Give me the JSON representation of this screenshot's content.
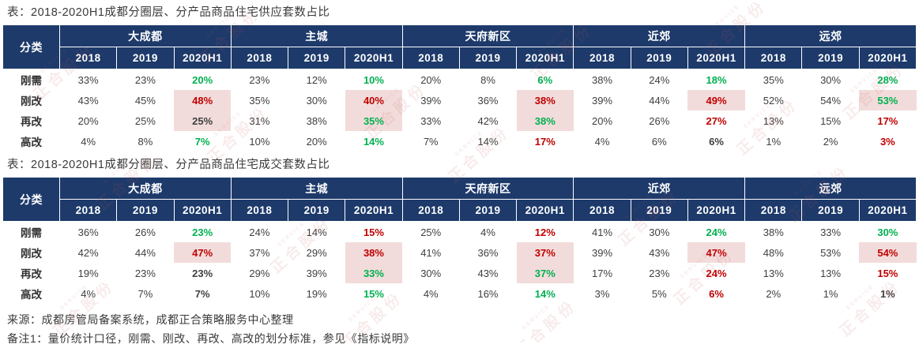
{
  "colors": {
    "header_bg": "#1d3a6a",
    "highlight_bg": "#f2dcdb",
    "positive_green": "#00b050",
    "negative_red": "#c00000",
    "text_dark": "#3f3f3f"
  },
  "table1": {
    "title": "表：2018-2020H1成都分圈层、分产品商品住宅供应套数占比",
    "corner": "分类",
    "groups": [
      "大成都",
      "主城",
      "天府新区",
      "近郊",
      "远郊"
    ],
    "years": [
      "2018",
      "2019",
      "2020H1"
    ],
    "rows": [
      {
        "label": "刚需",
        "cells": [
          "33%",
          "23%",
          "20% g",
          "23%",
          "12%",
          "10% g",
          "20%",
          "8%",
          "6% g",
          "38%",
          "24%",
          "18% g",
          "35%",
          "30%",
          "28% g"
        ]
      },
      {
        "label": "刚改",
        "cells": [
          "43%",
          "45%",
          "48% rh",
          "35%",
          "30%",
          "40% rh",
          "39%",
          "36%",
          "38% rh",
          "39%",
          "44%",
          "49% rh",
          "52%",
          "54%",
          "53% gh"
        ]
      },
      {
        "label": "再改",
        "cells": [
          "20%",
          "25%",
          "25% dh",
          "31%",
          "38%",
          "35% gh",
          "33%",
          "42%",
          "38% gh",
          "20%",
          "26%",
          "27% r",
          "13%",
          "15%",
          "17% r"
        ]
      },
      {
        "label": "高改",
        "cells": [
          "4%",
          "8%",
          "7% g",
          "10%",
          "20%",
          "14% g",
          "7%",
          "14%",
          "17% r",
          "4%",
          "6%",
          "6%",
          "1%",
          "2%",
          "3% r"
        ]
      }
    ]
  },
  "table2": {
    "title": "表：2018-2020H1成都分圈层、分产品商品住宅成交套数占比",
    "corner": "分类",
    "groups": [
      "大成都",
      "主城",
      "天府新区",
      "近郊",
      "远郊"
    ],
    "years": [
      "2018",
      "2019",
      "2020H1"
    ],
    "rows": [
      {
        "label": "刚需",
        "cells": [
          "36%",
          "26%",
          "23% g",
          "24%",
          "14%",
          "15% r",
          "25%",
          "4%",
          "12% r",
          "41%",
          "30%",
          "24% g",
          "38%",
          "33%",
          "30% g"
        ]
      },
      {
        "label": "刚改",
        "cells": [
          "42%",
          "44%",
          "47% rh",
          "37%",
          "29%",
          "38% rh",
          "41%",
          "36%",
          "37% rh",
          "39%",
          "43%",
          "47% rh",
          "48%",
          "53%",
          "54% rh"
        ]
      },
      {
        "label": "再改",
        "cells": [
          "19%",
          "23%",
          "23%",
          "29%",
          "39%",
          "33% gh",
          "30%",
          "43%",
          "37% gh",
          "17%",
          "23%",
          "24% r",
          "13%",
          "13%",
          "15% r"
        ]
      },
      {
        "label": "高改",
        "cells": [
          "4%",
          "7%",
          "7%",
          "10%",
          "19%",
          "15% g",
          "4%",
          "16%",
          "14% g",
          "3%",
          "5%",
          "6% r",
          "2%",
          "1%",
          "1%"
        ]
      }
    ]
  },
  "footer": {
    "source": "来源：成都房管局备案系统，成都正合策略服务中心整理",
    "note": "备注1：量价统计口径，刚需、刚改、再改、高改的划分标准，参见《指标说明》"
  },
  "watermark": {
    "text": "正合股份",
    "subtext": "SERVICE"
  }
}
